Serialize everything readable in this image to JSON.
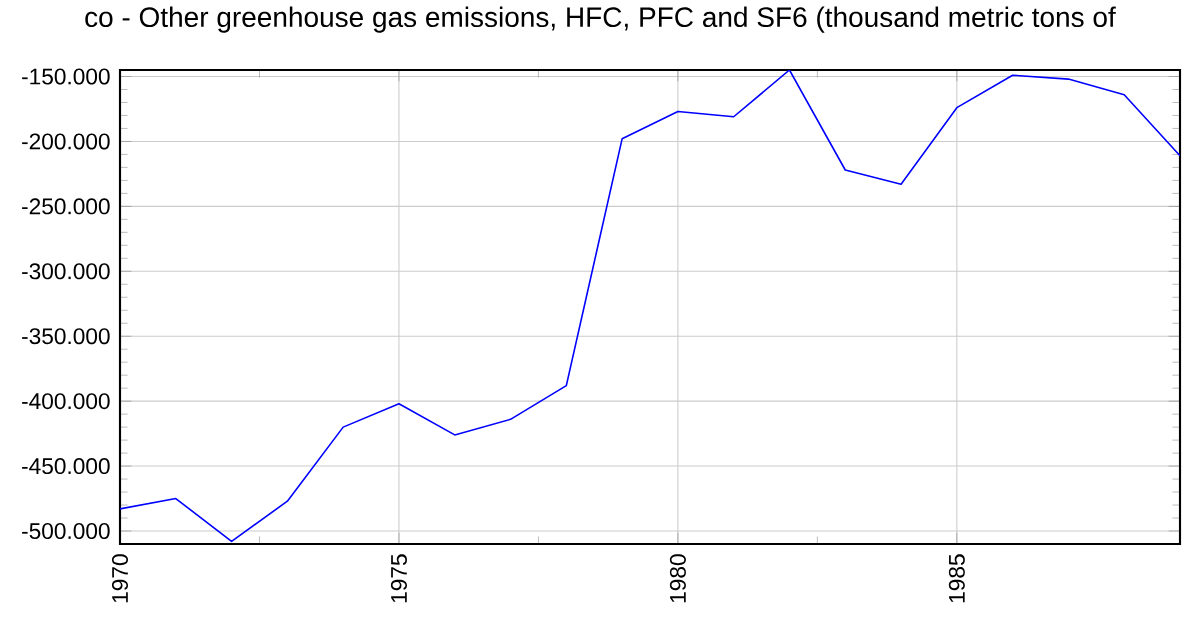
{
  "chart_data": {
    "type": "line",
    "title": "co - Other greenhouse gas emissions, HFC, PFC and SF6 (thousand metric tons of",
    "x": [
      1970,
      1971,
      1972,
      1973,
      1974,
      1975,
      1976,
      1977,
      1978,
      1979,
      1980,
      1981,
      1982,
      1983,
      1984,
      1985,
      1986,
      1987,
      1988,
      1989
    ],
    "series": [
      {
        "color": "#0000ff",
        "values": [
          -483000,
          -475000,
          -508000,
          -477000,
          -420000,
          -402000,
          -426000,
          -414000,
          -388000,
          -198000,
          -177000,
          -181000,
          -145000,
          -222000,
          -233000,
          -174000,
          -149000,
          -152000,
          -164000,
          -211000
        ]
      }
    ],
    "xlim": [
      1970,
      1989
    ],
    "xticks": [
      1970,
      1975,
      1980,
      1985
    ],
    "ylim": [
      -510000,
      -145000
    ],
    "yticks": [
      {
        "value": -500000,
        "label": "-500.000"
      },
      {
        "value": -450000,
        "label": "-450.000"
      },
      {
        "value": -400000,
        "label": "-400.000"
      },
      {
        "value": -350000,
        "label": "-350.000"
      },
      {
        "value": -300000,
        "label": "-300.000"
      },
      {
        "value": -250000,
        "label": "-250.000"
      },
      {
        "value": -200000,
        "label": "-200.000"
      },
      {
        "value": -150000,
        "label": "-150.000"
      }
    ],
    "grid": true,
    "marker": "none",
    "line_style": "solid"
  }
}
